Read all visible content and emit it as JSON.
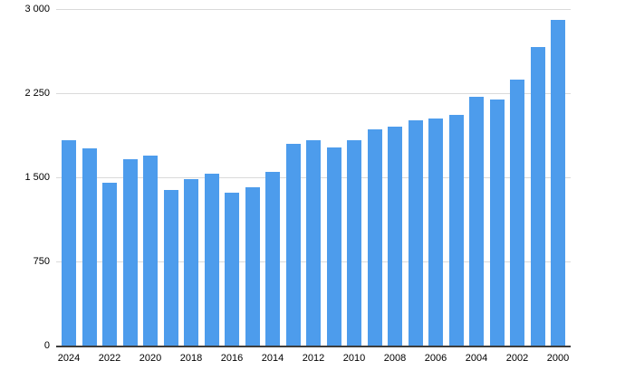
{
  "chart_data": {
    "type": "bar",
    "orientation": "vertical",
    "categories": [
      "2024",
      "2023",
      "2022",
      "2021",
      "2020",
      "2019",
      "2018",
      "2017",
      "2016",
      "2015",
      "2014",
      "2013",
      "2012",
      "2011",
      "2010",
      "2009",
      "2008",
      "2007",
      "2006",
      "2005",
      "2004",
      "2003",
      "2002",
      "2001",
      "2000"
    ],
    "values": [
      1830,
      1755,
      1450,
      1660,
      1690,
      1390,
      1480,
      1535,
      1365,
      1415,
      1545,
      1795,
      1830,
      1770,
      1830,
      1930,
      1950,
      2010,
      2025,
      2055,
      2220,
      2190,
      2370,
      2665,
      2905
    ],
    "x_tick_labels_shown": [
      "2024",
      "2022",
      "2020",
      "2018",
      "2016",
      "2014",
      "2012",
      "2010",
      "2008",
      "2006",
      "2004",
      "2002",
      "2000"
    ],
    "x_tick_every": 2,
    "ylim": [
      0,
      3000
    ],
    "yticks": [
      0,
      750,
      1500,
      2250,
      3000
    ],
    "ytick_labels": [
      "0",
      "750",
      "1 500",
      "2 250",
      "3 000"
    ],
    "grid": true,
    "legend_position": "none",
    "colors": {
      "bar": "#4d9cec",
      "gridline": "#dadada",
      "axis_line": "#3d3d3d",
      "tick_text": "#000000",
      "background": "#ffffff"
    }
  }
}
